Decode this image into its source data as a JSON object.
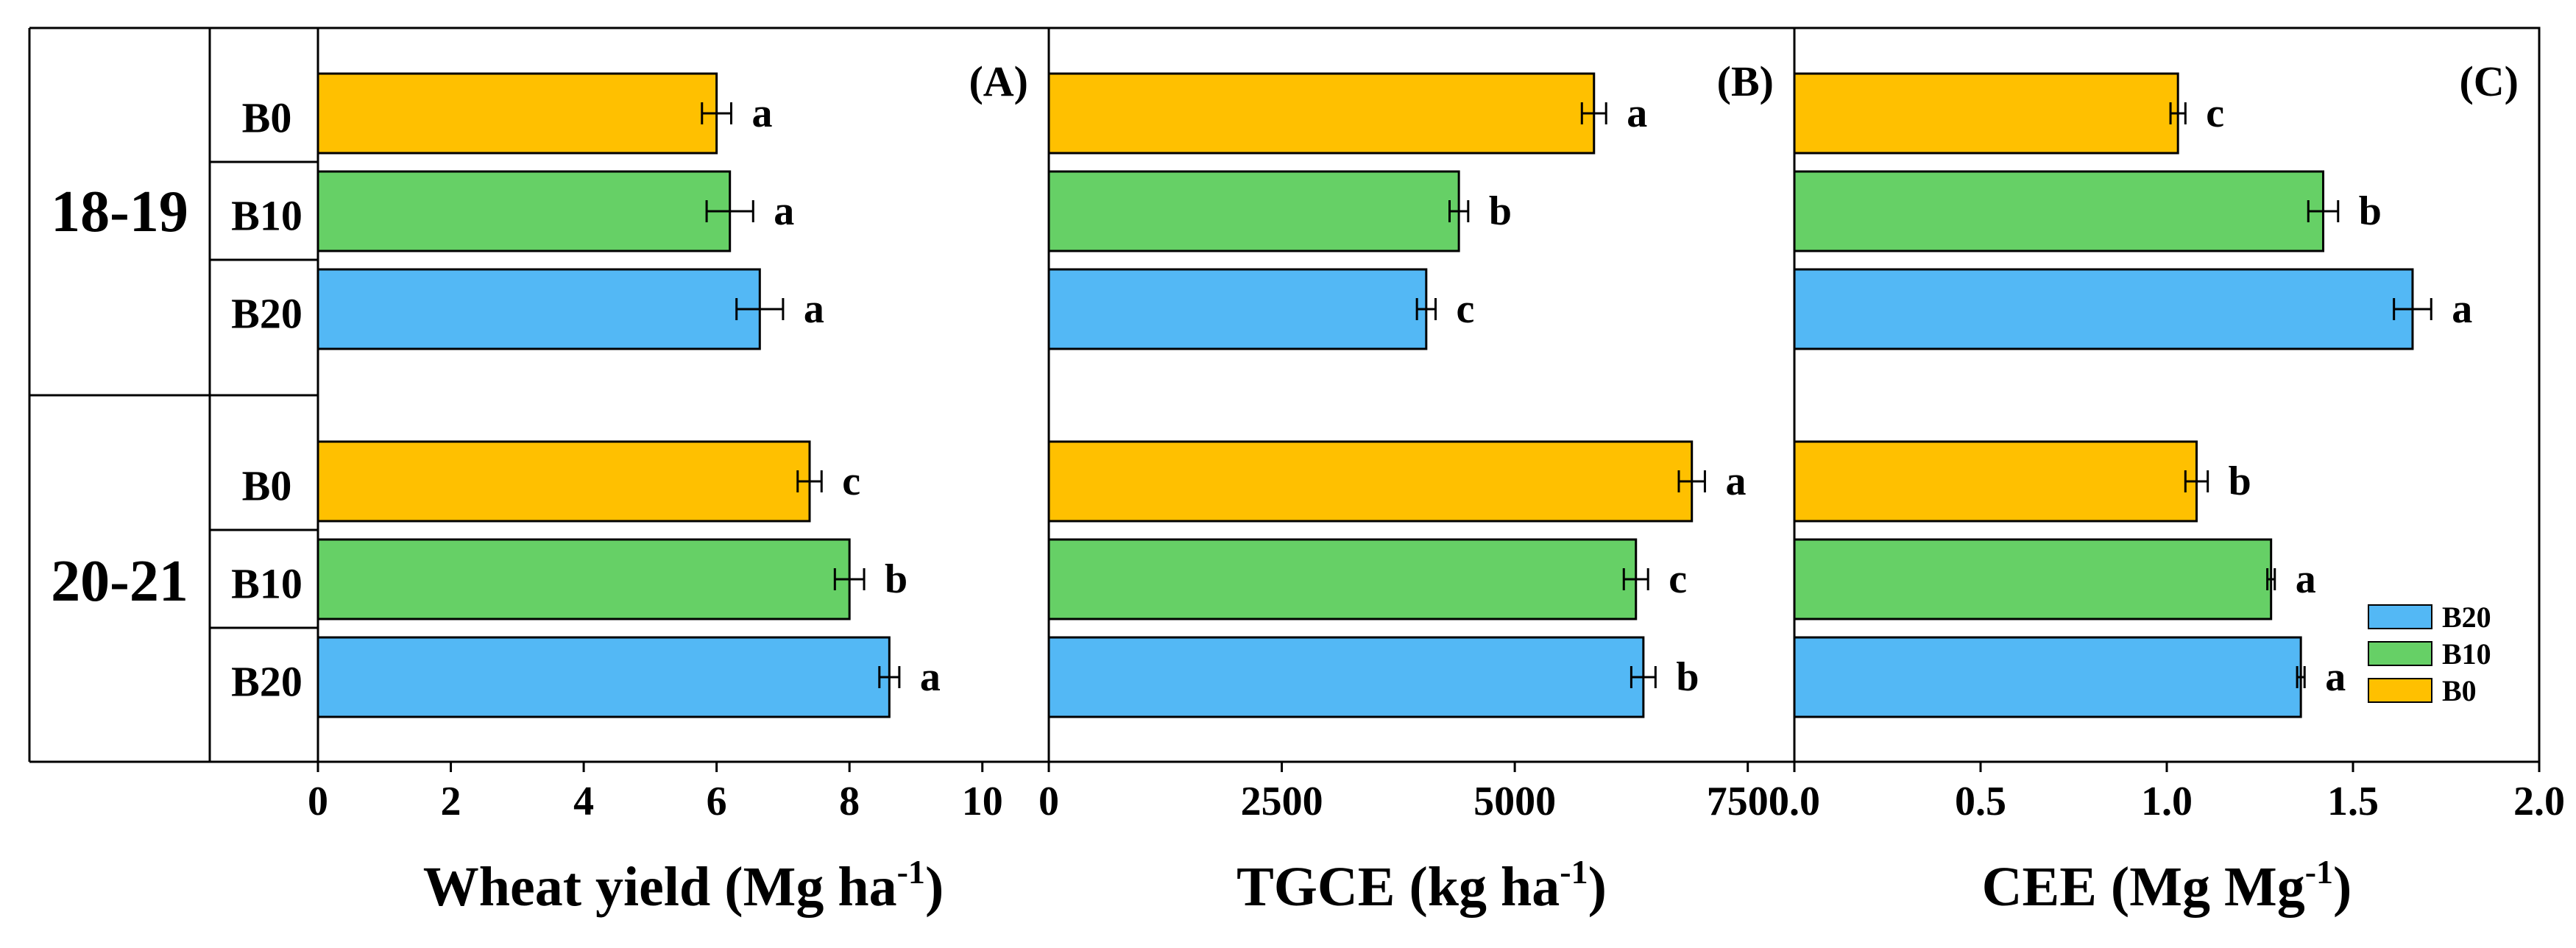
{
  "colors": {
    "B0": "#FFC000",
    "B10": "#66D066",
    "B20": "#53B8F5"
  },
  "row_labels": {
    "years": [
      "18-19",
      "20-21"
    ],
    "treatments": [
      "B0",
      "B10",
      "B20"
    ]
  },
  "legend": {
    "entries": [
      "B20",
      "B10",
      "B0"
    ]
  },
  "chart_data": [
    {
      "type": "bar",
      "orientation": "horizontal",
      "panel_label": "(A)",
      "xlabel_main": "Wheat yield (Mg ha",
      "xlabel_sup": "-1",
      "xlabel_end": ")",
      "xlim": [
        0,
        11
      ],
      "xticks": [
        0,
        2,
        4,
        6,
        8,
        10
      ],
      "xtick_labels": [
        "0",
        "2",
        "4",
        "6",
        "8",
        "10"
      ],
      "groups": [
        {
          "year": "18-19",
          "bars": [
            {
              "treatment": "B0",
              "value": 6.0,
              "error": 0.22,
              "sig": "a"
            },
            {
              "treatment": "B10",
              "value": 6.2,
              "error": 0.35,
              "sig": "a"
            },
            {
              "treatment": "B20",
              "value": 6.65,
              "error": 0.35,
              "sig": "a"
            }
          ]
        },
        {
          "year": "20-21",
          "bars": [
            {
              "treatment": "B0",
              "value": 7.4,
              "error": 0.18,
              "sig": "c"
            },
            {
              "treatment": "B10",
              "value": 8.0,
              "error": 0.22,
              "sig": "b"
            },
            {
              "treatment": "B20",
              "value": 8.6,
              "error": 0.15,
              "sig": "a"
            }
          ]
        }
      ]
    },
    {
      "type": "bar",
      "orientation": "horizontal",
      "panel_label": "(B)",
      "xlabel_main": "TGCE (kg ha",
      "xlabel_sup": "-1",
      "xlabel_end": ")",
      "xlim": [
        0,
        8000
      ],
      "xticks": [
        0,
        2500,
        5000,
        7500
      ],
      "xtick_labels": [
        "0",
        "2500",
        "5000",
        "7500"
      ],
      "groups": [
        {
          "year": "18-19",
          "bars": [
            {
              "treatment": "B0",
              "value": 5850,
              "error": 130,
              "sig": "a"
            },
            {
              "treatment": "B10",
              "value": 4400,
              "error": 100,
              "sig": "b"
            },
            {
              "treatment": "B20",
              "value": 4050,
              "error": 100,
              "sig": "c"
            }
          ]
        },
        {
          "year": "20-21",
          "bars": [
            {
              "treatment": "B0",
              "value": 6900,
              "error": 140,
              "sig": "a"
            },
            {
              "treatment": "B10",
              "value": 6300,
              "error": 130,
              "sig": "c"
            },
            {
              "treatment": "B20",
              "value": 6380,
              "error": 130,
              "sig": "b"
            }
          ]
        }
      ]
    },
    {
      "type": "bar",
      "orientation": "horizontal",
      "panel_label": "(C)",
      "xlabel_main": "CEE (Mg Mg",
      "xlabel_sup": "-1",
      "xlabel_end": ")",
      "xlim": [
        0,
        2.0
      ],
      "xticks": [
        0,
        0.5,
        1.0,
        1.5,
        2.0
      ],
      "xtick_labels": [
        "0.0",
        "0.5",
        "1.0",
        "1.5",
        "2.0"
      ],
      "groups": [
        {
          "year": "18-19",
          "bars": [
            {
              "treatment": "B0",
              "value": 1.03,
              "error": 0.02,
              "sig": "c"
            },
            {
              "treatment": "B10",
              "value": 1.42,
              "error": 0.04,
              "sig": "b"
            },
            {
              "treatment": "B20",
              "value": 1.66,
              "error": 0.05,
              "sig": "a"
            }
          ]
        },
        {
          "year": "20-21",
          "bars": [
            {
              "treatment": "B0",
              "value": 1.08,
              "error": 0.03,
              "sig": "b"
            },
            {
              "treatment": "B10",
              "value": 1.28,
              "error": 0.01,
              "sig": "a"
            },
            {
              "treatment": "B20",
              "value": 1.36,
              "error": 0.01,
              "sig": "a"
            }
          ]
        }
      ]
    }
  ]
}
